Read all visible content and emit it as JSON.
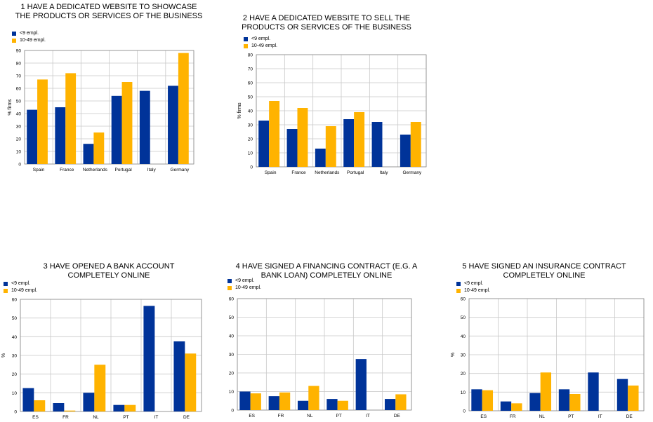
{
  "colors": {
    "small": "#003399",
    "medium": "#FFB300",
    "grid": "#c8c8c8",
    "axis": "#888888"
  },
  "chart_data": [
    {
      "type": "bar",
      "title": "1 HAVE A DEDICATED WEBSITE TO SHOWCASE THE PRODUCTS OR SERVICES OF THE BUSINESS",
      "ylabel": "% firms",
      "categories": [
        "Spain",
        "France",
        "Netherlands",
        "Portugal",
        "Italy",
        "Germany"
      ],
      "ylim": [
        0,
        90
      ],
      "yticks": [
        0,
        10,
        20,
        30,
        40,
        50,
        60,
        70,
        80,
        90
      ],
      "grid": true,
      "legend_position": "top-left",
      "series": [
        {
          "name": "<9 empl.",
          "values": [
            43,
            45,
            16,
            54,
            58,
            62
          ]
        },
        {
          "name": "10-49 empl.",
          "values": [
            67,
            72,
            25,
            65,
            null,
            88
          ]
        }
      ]
    },
    {
      "type": "bar",
      "title": "2 HAVE A DEDICATED WEBSITE TO SELL THE PRODUCTS OR SERVICES OF THE BUSINESS",
      "ylabel": "% firms",
      "categories": [
        "Spain",
        "France",
        "Netherlands",
        "Portugal",
        "Italy",
        "Germany"
      ],
      "ylim": [
        0,
        80
      ],
      "yticks": [
        0,
        10,
        20,
        30,
        40,
        50,
        60,
        70,
        80
      ],
      "grid": true,
      "legend_position": "top-left",
      "series": [
        {
          "name": "<9 empl.",
          "values": [
            33,
            27,
            13,
            34,
            32,
            23
          ]
        },
        {
          "name": "10-49 empl.",
          "values": [
            47,
            42,
            29,
            39,
            null,
            32
          ]
        }
      ]
    },
    {
      "type": "bar",
      "title": "3 HAVE OPENED A BANK ACCOUNT COMPLETELY ONLINE",
      "ylabel": "%",
      "categories": [
        "ES",
        "FR",
        "NL",
        "PT",
        "IT",
        "DE"
      ],
      "ylim": [
        0,
        60
      ],
      "yticks": [
        0,
        10,
        20,
        30,
        40,
        50,
        60
      ],
      "grid": true,
      "legend_position": "top-left",
      "series": [
        {
          "name": "<9 empl.",
          "values": [
            12.5,
            4.5,
            10,
            3.5,
            56.5,
            37.5
          ]
        },
        {
          "name": "10-49 empl.",
          "values": [
            6,
            0.5,
            25,
            3.5,
            null,
            31
          ]
        }
      ]
    },
    {
      "type": "bar",
      "title": "4 HAVE SIGNED A FINANCING CONTRACT (E.G. A BANK LOAN) COMPLETELY ONLINE",
      "ylabel": "",
      "categories": [
        "ES",
        "FR",
        "NL",
        "PT",
        "IT",
        "DE"
      ],
      "ylim": [
        0,
        60
      ],
      "yticks": [
        0,
        10,
        20,
        30,
        40,
        50,
        60
      ],
      "grid": true,
      "legend_position": "top-left",
      "series": [
        {
          "name": "<9 empl.",
          "values": [
            10,
            7.5,
            5,
            6,
            27.5,
            6
          ]
        },
        {
          "name": "10-49 empl.",
          "values": [
            9,
            9.5,
            13,
            5,
            null,
            8.5
          ]
        }
      ]
    },
    {
      "type": "bar",
      "title": "5 HAVE SIGNED AN INSURANCE CONTRACT COMPLETELY ONLINE",
      "ylabel": "%",
      "categories": [
        "ES",
        "FR",
        "NL",
        "PT",
        "IT",
        "DE"
      ],
      "ylim": [
        0,
        60
      ],
      "yticks": [
        0,
        10,
        20,
        30,
        40,
        50,
        60
      ],
      "grid": true,
      "legend_position": "top-left",
      "series": [
        {
          "name": "<9 empl.",
          "values": [
            11.5,
            5,
            9.5,
            11.5,
            20.5,
            17
          ]
        },
        {
          "name": "10-49 empl.",
          "values": [
            11,
            4,
            20.5,
            9,
            null,
            13.5
          ]
        }
      ]
    }
  ]
}
